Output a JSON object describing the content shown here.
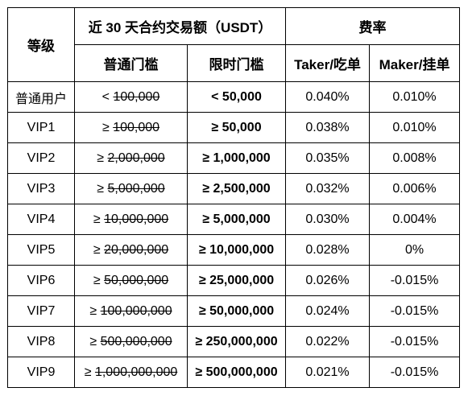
{
  "header": {
    "tier": "等级",
    "volume_group": "近 30 天合约交易额（USDT）",
    "fee_group": "费率",
    "regular_threshold": "普通门槛",
    "limited_threshold": "限时门槛",
    "taker": "Taker/吃单",
    "maker": "Maker/挂单"
  },
  "rows": [
    {
      "tier": "普通用户",
      "reg_sym": "<",
      "reg_val": "100,000",
      "lim": "< 50,000",
      "taker": "0.040%",
      "maker": "0.010%"
    },
    {
      "tier": "VIP1",
      "reg_sym": "≥",
      "reg_val": "100,000",
      "lim": "≥ 50,000",
      "taker": "0.038%",
      "maker": "0.010%"
    },
    {
      "tier": "VIP2",
      "reg_sym": "≥",
      "reg_val": "2,000,000",
      "lim": "≥ 1,000,000",
      "taker": "0.035%",
      "maker": "0.008%"
    },
    {
      "tier": "VIP3",
      "reg_sym": "≥",
      "reg_val": "5,000,000",
      "lim": "≥ 2,500,000",
      "taker": "0.032%",
      "maker": "0.006%"
    },
    {
      "tier": "VIP4",
      "reg_sym": "≥",
      "reg_val": "10,000,000",
      "lim": "≥ 5,000,000",
      "taker": "0.030%",
      "maker": "0.004%"
    },
    {
      "tier": "VIP5",
      "reg_sym": "≥",
      "reg_val": "20,000,000",
      "lim": "≥ 10,000,000",
      "taker": "0.028%",
      "maker": "0%"
    },
    {
      "tier": "VIP6",
      "reg_sym": "≥",
      "reg_val": "50,000,000",
      "lim": "≥ 25,000,000",
      "taker": "0.026%",
      "maker": "-0.015%"
    },
    {
      "tier": "VIP7",
      "reg_sym": "≥",
      "reg_val": "100,000,000",
      "lim": "≥ 50,000,000",
      "taker": "0.024%",
      "maker": "-0.015%"
    },
    {
      "tier": "VIP8",
      "reg_sym": "≥",
      "reg_val": "500,000,000",
      "lim": "≥ 250,000,000",
      "taker": "0.022%",
      "maker": "-0.015%"
    },
    {
      "tier": "VIP9",
      "reg_sym": "≥",
      "reg_val": "1,000,000,000",
      "lim": "≥ 500,000,000",
      "taker": "0.021%",
      "maker": "-0.015%"
    }
  ]
}
